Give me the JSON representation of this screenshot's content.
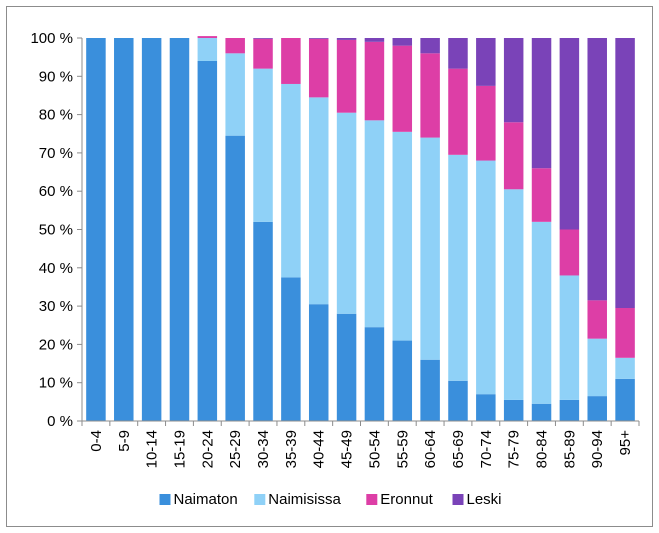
{
  "chart_data": {
    "type": "bar",
    "stacked": true,
    "normalized_percent": true,
    "categories": [
      "0-4",
      "5-9",
      "10-14",
      "15-19",
      "20-24",
      "25-29",
      "30-34",
      "35-39",
      "40-44",
      "45-49",
      "50-54",
      "55-59",
      "60-64",
      "65-69",
      "70-74",
      "75-79",
      "80-84",
      "85-89",
      "90-94",
      "95+"
    ],
    "series": [
      {
        "name": "Naimaton",
        "color": "#3a8fdc",
        "values": [
          100,
          100,
          100,
          100,
          94,
          74.5,
          52,
          37.5,
          30.5,
          28,
          24.5,
          21,
          16,
          10.5,
          7,
          5.5,
          4.5,
          5.5,
          6.5,
          11
        ]
      },
      {
        "name": "Naimisissa",
        "color": "#8fd1f7",
        "values": [
          0,
          0,
          0,
          0,
          6,
          21.5,
          40,
          50.5,
          54,
          52.5,
          54,
          54.5,
          58,
          59,
          61,
          55,
          47.5,
          32.5,
          15,
          5.5
        ]
      },
      {
        "name": "Eronnut",
        "color": "#dd3ea6",
        "values": [
          0,
          0,
          0,
          0,
          0.5,
          4,
          7.8,
          12,
          15.3,
          19,
          20.5,
          22.5,
          22,
          22.5,
          19.5,
          17.5,
          14,
          12,
          10,
          13
        ]
      },
      {
        "name": "Leski",
        "color": "#7a43b8",
        "values": [
          0,
          0,
          0,
          0,
          0,
          0,
          0.2,
          0,
          0.2,
          0.5,
          1,
          2,
          4,
          8,
          12.5,
          22,
          34,
          50,
          68.5,
          70.5
        ]
      }
    ],
    "y_ticks": [
      "0 %",
      "10 %",
      "20 %",
      "30 %",
      "40 %",
      "50 %",
      "60 %",
      "70 %",
      "80 %",
      "90 %",
      "100 %"
    ],
    "ylim": [
      0,
      100
    ],
    "grid": false,
    "legend_position": "bottom"
  }
}
